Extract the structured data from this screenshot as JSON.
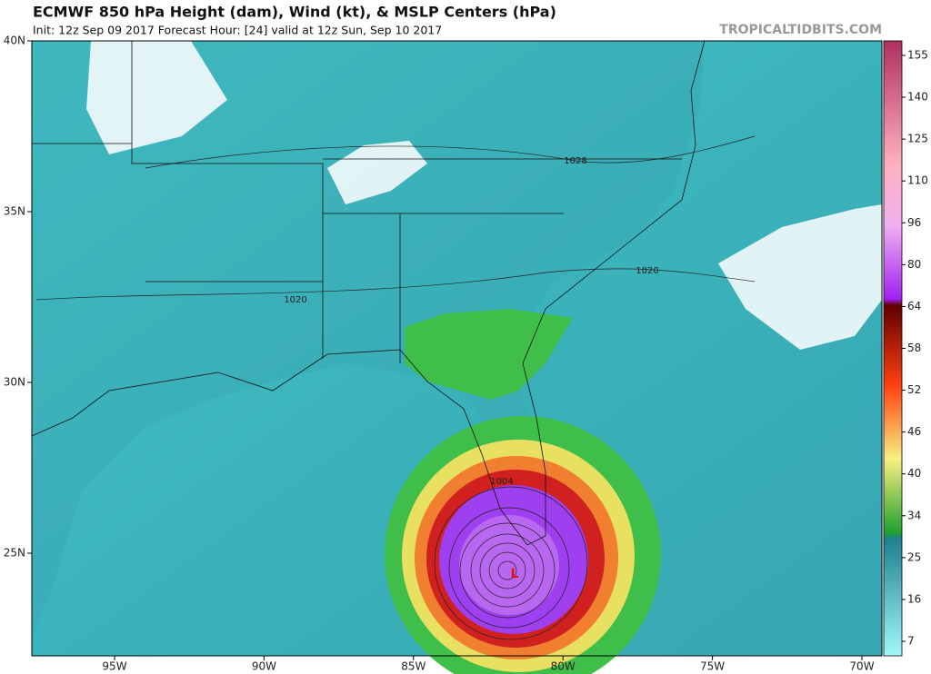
{
  "header": {
    "title": "ECMWF 850 hPa Height (dam), Wind (kt), & MSLP Centers (hPa)",
    "subtitle": "Init: 12z Sep 09 2017   Forecast Hour: [24]   valid at 12z Sun, Sep 10 2017",
    "watermark": "TROPICALTIDBITS.COM"
  },
  "map": {
    "lat_labels": [
      "40N",
      "35N",
      "30N",
      "25N"
    ],
    "lon_labels": [
      "95W",
      "90W",
      "85W",
      "80W",
      "75W",
      "70W"
    ],
    "contour_labels": [
      "1028",
      "1020",
      "1020",
      "1004"
    ],
    "low_label": "L"
  },
  "colorbar": {
    "labels": [
      155,
      140,
      125,
      110,
      96,
      80,
      64,
      58,
      52,
      46,
      40,
      34,
      25,
      16,
      7
    ]
  }
}
